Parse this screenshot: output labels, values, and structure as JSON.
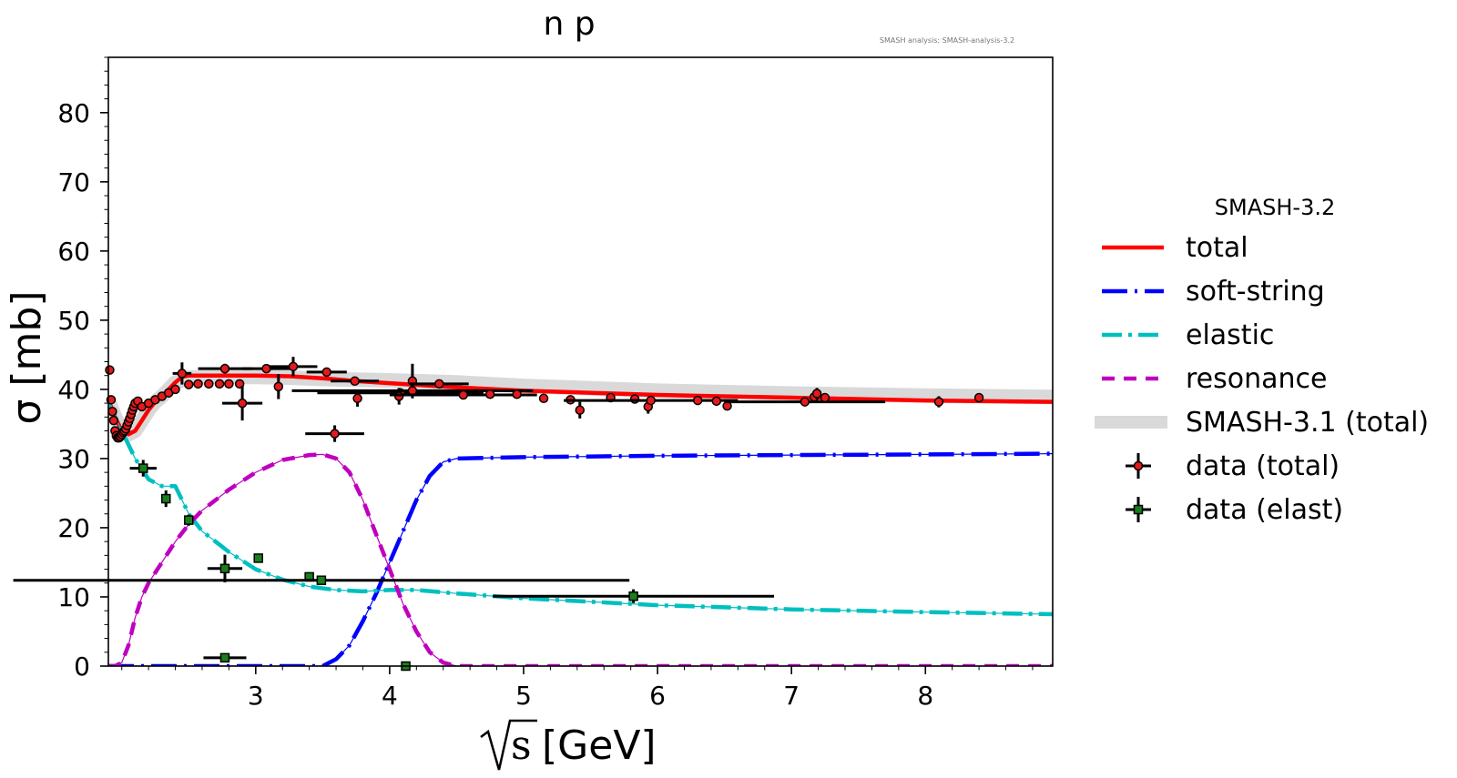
{
  "chart_data": {
    "type": "line",
    "title": "n p",
    "annotation": "SMASH analysis: SMASH-analysis-3.2",
    "ylabel": "σ [mb]",
    "xlabel_sqrt_symbol": "s",
    "xlabel_unit": "[GeV]",
    "xlim": [
      1.9,
      8.95
    ],
    "ylim": [
      0,
      88
    ],
    "x_ticks": [
      3,
      4,
      5,
      6,
      7,
      8
    ],
    "y_ticks": [
      0,
      10,
      20,
      30,
      40,
      50,
      60,
      70,
      80
    ],
    "grid": false,
    "legend_position": "right",
    "legend_title": "SMASH-3.2",
    "colors": {
      "total": "#ff0000",
      "soft_string": "#0000ff",
      "elastic": "#00bfbf",
      "resonance": "#bf00bf",
      "smash31": "#d9d9d9",
      "data_total": "#e41a1c",
      "data_elast": "#1a7f1a",
      "errorbar": "#000000"
    },
    "series": [
      {
        "name": "SMASH-3.1 (total)",
        "style": "band",
        "x": [
          1.9,
          1.95,
          2.0,
          2.05,
          2.1,
          2.15,
          2.2,
          2.25,
          2.3,
          2.35,
          2.4,
          2.5,
          2.75,
          3.0,
          3.25,
          3.5,
          3.75,
          4.0,
          4.5,
          5.0,
          6.0,
          7.0,
          8.0,
          8.95
        ],
        "y": [
          38.5,
          36,
          34,
          33.5,
          34,
          35.5,
          37,
          38.2,
          39,
          40,
          41,
          41.7,
          41.8,
          41.8,
          41.7,
          41.5,
          41.4,
          41.3,
          41.0,
          40.5,
          39.8,
          39.4,
          39.1,
          38.9
        ]
      },
      {
        "name": "total",
        "style": "solid",
        "x": [
          1.9,
          1.95,
          2.0,
          2.05,
          2.1,
          2.15,
          2.2,
          2.25,
          2.3,
          2.35,
          2.4,
          2.45,
          2.5,
          2.75,
          3.0,
          3.25,
          3.5,
          3.75,
          4.0,
          4.5,
          5.0,
          6.0,
          7.0,
          8.0,
          8.95
        ],
        "y": [
          38.5,
          36,
          34,
          33.5,
          34,
          35.5,
          37,
          38.2,
          39,
          40,
          41,
          41.8,
          42.0,
          42.0,
          42.0,
          41.9,
          41.6,
          41.2,
          40.9,
          40.3,
          39.8,
          39.2,
          38.8,
          38.4,
          38.2
        ]
      },
      {
        "name": "soft-string",
        "style": "long-dash",
        "x": [
          1.9,
          2.5,
          3.0,
          3.5,
          3.6,
          3.7,
          3.8,
          3.9,
          4.0,
          4.1,
          4.2,
          4.3,
          4.4,
          4.5,
          5.0,
          6.0,
          7.0,
          8.0,
          8.95
        ],
        "y": [
          0,
          0,
          0,
          0,
          1,
          3,
          6.5,
          10.5,
          15,
          19.5,
          24,
          27.5,
          29.5,
          30.0,
          30.2,
          30.4,
          30.5,
          30.6,
          30.7
        ]
      },
      {
        "name": "elastic",
        "style": "dash-dot",
        "x": [
          1.9,
          1.95,
          2.0,
          2.05,
          2.1,
          2.15,
          2.2,
          2.3,
          2.4,
          2.5,
          2.6,
          2.7,
          2.8,
          3.0,
          3.2,
          3.4,
          3.6,
          3.8,
          4.0,
          4.2,
          4.5,
          5.0,
          6.0,
          7.0,
          8.0,
          8.95
        ],
        "y": [
          38,
          36,
          34,
          32,
          30,
          28.5,
          27,
          26,
          26,
          22,
          19.5,
          18,
          16.5,
          14,
          12.5,
          11.5,
          11,
          10.8,
          11,
          11,
          10.5,
          9.8,
          8.8,
          8.2,
          7.8,
          7.5
        ]
      },
      {
        "name": "resonance",
        "style": "dash",
        "x": [
          1.9,
          1.95,
          2.0,
          2.05,
          2.1,
          2.15,
          2.2,
          2.3,
          2.4,
          2.5,
          2.6,
          2.8,
          3.0,
          3.2,
          3.4,
          3.5,
          3.6,
          3.7,
          3.8,
          3.9,
          4.0,
          4.1,
          4.2,
          4.3,
          4.4,
          4.5,
          5.0,
          6.0,
          7.0,
          8.0,
          8.95
        ],
        "y": [
          0,
          0,
          0.5,
          3,
          7,
          10,
          12,
          15,
          18,
          20.5,
          22.5,
          25.5,
          28,
          29.8,
          30.5,
          30.6,
          30,
          28,
          24,
          19,
          14,
          9,
          5,
          2,
          0.5,
          0,
          0,
          0,
          0,
          0,
          0
        ]
      }
    ],
    "data_total": {
      "name": "data (total)",
      "points": [
        {
          "x": 1.91,
          "y": 42.8
        },
        {
          "x": 1.92,
          "y": 38.5
        },
        {
          "x": 1.93,
          "y": 36.8
        },
        {
          "x": 1.94,
          "y": 35.5
        },
        {
          "x": 1.95,
          "y": 34.0
        },
        {
          "x": 1.96,
          "y": 33.3
        },
        {
          "x": 1.97,
          "y": 33.0
        },
        {
          "x": 1.98,
          "y": 33.0
        },
        {
          "x": 1.99,
          "y": 33.2
        },
        {
          "x": 2.0,
          "y": 33.5
        },
        {
          "x": 2.01,
          "y": 33.8
        },
        {
          "x": 2.02,
          "y": 34.0
        },
        {
          "x": 2.03,
          "y": 34.3
        },
        {
          "x": 2.04,
          "y": 34.8
        },
        {
          "x": 2.05,
          "y": 35.3
        },
        {
          "x": 2.06,
          "y": 35.8
        },
        {
          "x": 2.07,
          "y": 36.4
        },
        {
          "x": 2.08,
          "y": 37.0
        },
        {
          "x": 2.09,
          "y": 37.5
        },
        {
          "x": 2.1,
          "y": 38.0
        },
        {
          "x": 2.12,
          "y": 38.3
        },
        {
          "x": 2.15,
          "y": 37.5
        },
        {
          "x": 2.2,
          "y": 38.0
        },
        {
          "x": 2.25,
          "y": 38.5
        },
        {
          "x": 2.3,
          "y": 39.0
        },
        {
          "x": 2.35,
          "y": 39.5
        },
        {
          "x": 2.4,
          "y": 40.0
        },
        {
          "x": 2.45,
          "y": 42.3,
          "xerr": 0.07,
          "yerr": 1.6
        },
        {
          "x": 2.5,
          "y": 40.7
        },
        {
          "x": 2.57,
          "y": 40.8
        },
        {
          "x": 2.65,
          "y": 40.8
        },
        {
          "x": 2.73,
          "y": 40.8
        },
        {
          "x": 2.8,
          "y": 40.8
        },
        {
          "x": 2.88,
          "y": 40.8
        },
        {
          "x": 2.77,
          "y": 43.0,
          "xerr": 0.2,
          "yerr": 0.7
        },
        {
          "x": 2.9,
          "y": 38.0,
          "xerr": 0.15,
          "yerr": 2.5
        },
        {
          "x": 3.08,
          "y": 43.0,
          "xerr": 0.18
        },
        {
          "x": 3.17,
          "y": 40.4,
          "yerr": 1.8
        },
        {
          "x": 3.28,
          "y": 43.3,
          "xerr": 0.18,
          "yerr": 1.4
        },
        {
          "x": 3.53,
          "y": 42.5,
          "xerr": 0.15
        },
        {
          "x": 3.74,
          "y": 41.2,
          "xerr": 0.18
        },
        {
          "x": 3.76,
          "y": 38.7,
          "yerr": 1.2
        },
        {
          "x": 3.59,
          "y": 33.6,
          "xerr": 0.22,
          "yerr": 1.2
        },
        {
          "x": 4.08,
          "y": 39.5,
          "xerr": 0.62
        },
        {
          "x": 4.07,
          "y": 39.0,
          "yerr": 1.2
        },
        {
          "x": 4.17,
          "y": 41.2,
          "yerr": 2.5
        },
        {
          "x": 4.17,
          "y": 39.8,
          "xerr": 0.9
        },
        {
          "x": 4.37,
          "y": 40.8,
          "xerr": 0.22
        },
        {
          "x": 4.55,
          "y": 39.2,
          "xerr": 0.55
        },
        {
          "x": 4.75,
          "y": 39.3
        },
        {
          "x": 4.95,
          "y": 39.3
        },
        {
          "x": 5.15,
          "y": 38.7
        },
        {
          "x": 5.35,
          "y": 38.5
        },
        {
          "x": 5.42,
          "y": 37.0,
          "yerr": 1.2
        },
        {
          "x": 5.65,
          "y": 38.8
        },
        {
          "x": 5.83,
          "y": 38.6
        },
        {
          "x": 5.93,
          "y": 37.5,
          "yerr": 1.0
        },
        {
          "x": 5.95,
          "y": 38.4,
          "xerr": 0.65
        },
        {
          "x": 6.3,
          "y": 38.4
        },
        {
          "x": 6.44,
          "y": 38.3
        },
        {
          "x": 6.52,
          "y": 37.6
        },
        {
          "x": 7.1,
          "y": 38.2,
          "xerr": 0.6
        },
        {
          "x": 7.17,
          "y": 38.9
        },
        {
          "x": 7.19,
          "y": 39.4,
          "yerr": 0.8
        },
        {
          "x": 7.25,
          "y": 38.8
        },
        {
          "x": 8.1,
          "y": 38.2,
          "yerr": 0.8
        },
        {
          "x": 8.4,
          "y": 38.8
        }
      ]
    },
    "data_elast": {
      "name": "data (elast)",
      "points": [
        {
          "x": 2.16,
          "y": 28.6,
          "xerr": 0.1,
          "yerr": 1.2
        },
        {
          "x": 2.33,
          "y": 24.2,
          "yerr": 1.2
        },
        {
          "x": 2.5,
          "y": 21.1,
          "yerr": 0.8
        },
        {
          "x": 2.77,
          "y": 14.1,
          "xerr": 0.13,
          "yerr": 2.0
        },
        {
          "x": 3.02,
          "y": 15.6
        },
        {
          "x": 3.4,
          "y": 12.9
        },
        {
          "x": 3.49,
          "y": 12.4,
          "xerr": 2.3
        },
        {
          "x": 5.82,
          "y": 10.1,
          "xerr": 1.05,
          "yerr": 1.0
        },
        {
          "x": 2.77,
          "y": 1.2,
          "xerr": 0.16
        },
        {
          "x": 4.12,
          "y": 0.0
        }
      ]
    },
    "legend_items": [
      {
        "label": "total",
        "key": "total"
      },
      {
        "label": "soft-string",
        "key": "soft_string"
      },
      {
        "label": "elastic",
        "key": "elastic"
      },
      {
        "label": "resonance",
        "key": "resonance"
      },
      {
        "label": "SMASH-3.1 (total)",
        "key": "smash31"
      },
      {
        "label": "data (total)",
        "key": "data_total"
      },
      {
        "label": "data (elast)",
        "key": "data_elast"
      }
    ]
  }
}
